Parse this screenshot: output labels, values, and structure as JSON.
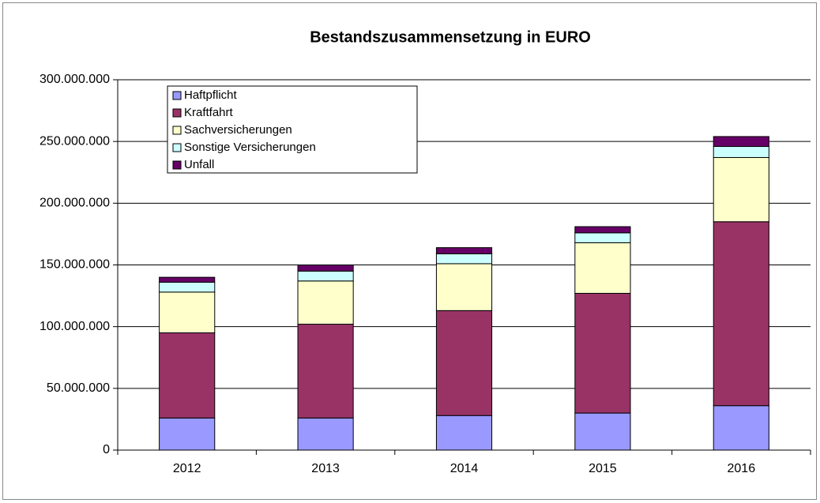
{
  "chart_data": {
    "type": "stacked_bar",
    "title": "Bestandszusammensetzung in EURO",
    "categories": [
      "2012",
      "2013",
      "2014",
      "2015",
      "2016"
    ],
    "series": [
      {
        "name": "Haftpflicht",
        "color": "#9999ff",
        "values": [
          26000000,
          26000000,
          28000000,
          30000000,
          36000000
        ]
      },
      {
        "name": "Kraftfahrt",
        "color": "#993366",
        "values": [
          69000000,
          76000000,
          85000000,
          97000000,
          149000000
        ]
      },
      {
        "name": "Sachversicherungen",
        "color": "#ffffcc",
        "values": [
          33000000,
          35000000,
          38000000,
          41000000,
          52000000
        ]
      },
      {
        "name": "Sonstige Versicherungen",
        "color": "#ccffff",
        "values": [
          8000000,
          8000000,
          8000000,
          8000000,
          9000000
        ]
      },
      {
        "name": "Unfall",
        "color": "#660066",
        "values": [
          4000000,
          5000000,
          5000000,
          5000000,
          8000000
        ]
      }
    ],
    "ylim": [
      0,
      300000000
    ],
    "yticks": [
      0,
      {
        "value": 50000000,
        "label": "50.000.000"
      },
      {
        "value": 100000000,
        "label": "100.000.000"
      },
      {
        "value": 150000000,
        "label": "150.000.000"
      },
      {
        "value": 200000000,
        "label": "200.000.000"
      },
      {
        "value": 250000000,
        "label": "250.000.000"
      },
      {
        "value": 300000000,
        "label": "300.000.000"
      }
    ],
    "grid": true,
    "legend": "upper left"
  }
}
